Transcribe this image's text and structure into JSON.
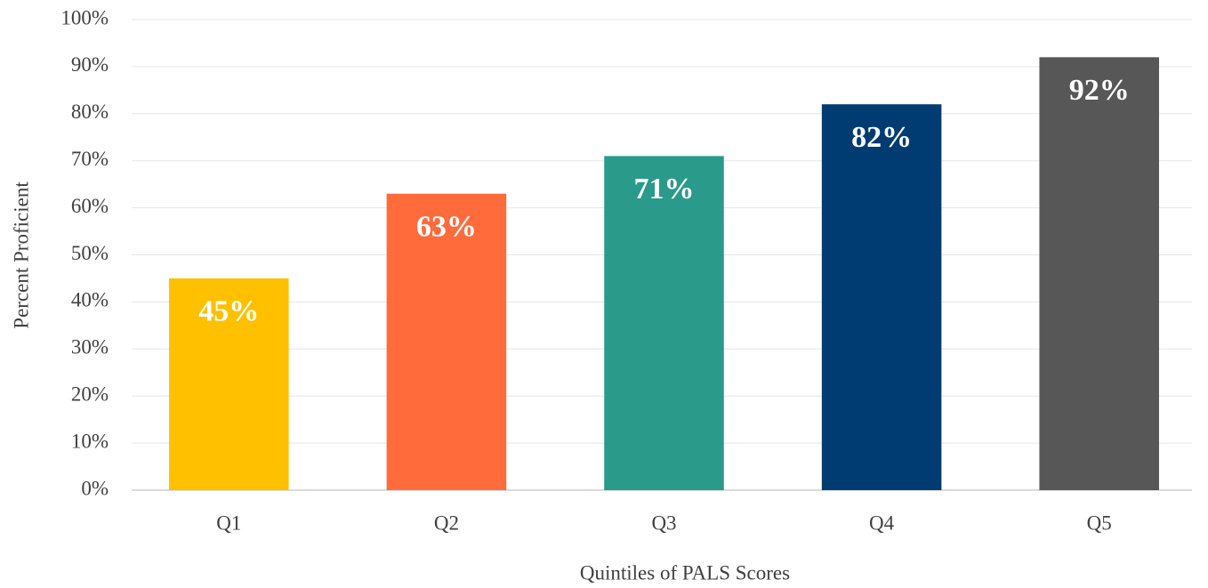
{
  "chart_data": {
    "type": "bar",
    "xlabel": "Quintiles of PALS Scores",
    "ylabel": "Percent Proficient",
    "categories": [
      "Q1",
      "Q2",
      "Q3",
      "Q4",
      "Q5"
    ],
    "values": [
      45,
      63,
      71,
      82,
      92
    ],
    "value_labels": [
      "45%",
      "63%",
      "71%",
      "82%",
      "92%"
    ],
    "colors": [
      "#ffc000",
      "#ff6b3b",
      "#2a9a8a",
      "#003c71",
      "#575757"
    ],
    "ylim": [
      0,
      100
    ],
    "yticks": [
      {
        "value": 0,
        "label": "0%"
      },
      {
        "value": 10,
        "label": "10%"
      },
      {
        "value": 20,
        "label": "20%"
      },
      {
        "value": 30,
        "label": "30%"
      },
      {
        "value": 40,
        "label": "40%"
      },
      {
        "value": 50,
        "label": "50%"
      },
      {
        "value": 60,
        "label": "60%"
      },
      {
        "value": 70,
        "label": "70%"
      },
      {
        "value": 80,
        "label": "80%"
      },
      {
        "value": 90,
        "label": "90%"
      },
      {
        "value": 100,
        "label": "100%"
      }
    ],
    "grid": true
  }
}
